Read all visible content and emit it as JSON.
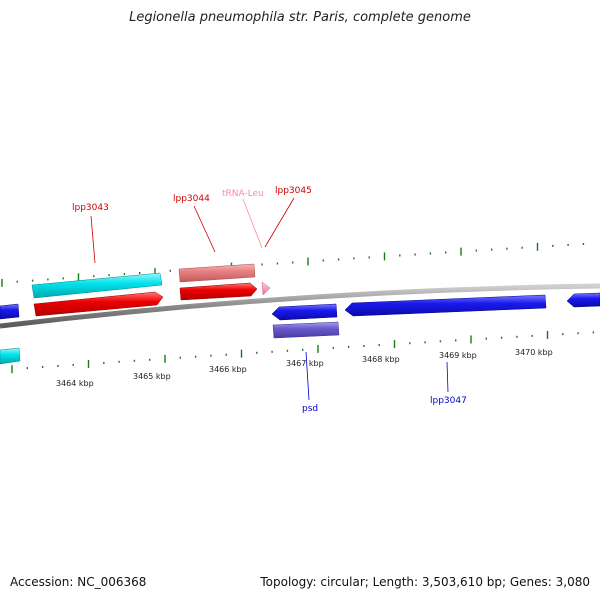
{
  "title": "Legionella pneumophila str. Paris, complete genome",
  "footer": {
    "accession": "Accession: NC_006368",
    "summary": "Topology: circular; Length: 3,503,610 bp; Genes: 3,080"
  },
  "colors": {
    "backbone": "#8a8a8a",
    "tick": "#1a7a1a",
    "cds_forward_strand_top": "#00e5ee",
    "cds_forward_strand_gene": "#ee0000",
    "cds_forward_light": "#e88080",
    "trna": "#ff99bb",
    "cds_reverse": "#1a1aee",
    "cds_reverse_light": "#6a5acd",
    "label_forward": "#cc0000",
    "label_trna": "#ff88aa",
    "label_reverse": "#0000cc"
  },
  "scale_labels": [
    "3464 kbp",
    "3465 kbp",
    "3466 kbp",
    "3467 kbp",
    "3468 kbp",
    "3469 kbp",
    "3470 kbp"
  ],
  "gene_labels": {
    "lpp3043": "lpp3043",
    "lpp3044": "lpp3044",
    "trna_leu": "tRNA-Leu",
    "lpp3045": "lpp3045",
    "psd": "psd",
    "lpp3047": "lpp3047"
  }
}
